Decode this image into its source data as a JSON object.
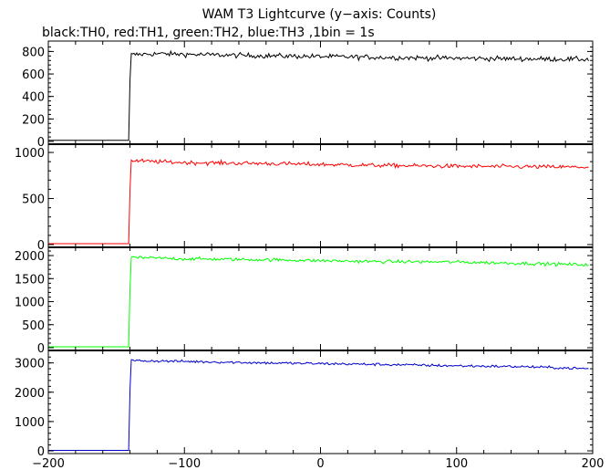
{
  "chart_data": {
    "type": "line",
    "title": "WAM T3 Lightcurve (y−axis: Counts)",
    "subtitle": "black:TH0, red:TH1, green:TH2, blue:TH3 ,1bin = 1s",
    "xlim": [
      -200,
      200
    ],
    "x_ticks": [
      -200,
      -100,
      0,
      100,
      200
    ],
    "x_tick_labels": [
      "−200",
      "−100",
      "0",
      "100",
      "200"
    ],
    "burst_time": -140,
    "panels": [
      {
        "series": "TH0",
        "color": "#000000",
        "ylim": [
          0,
          860
        ],
        "y_ticks": [
          0,
          200,
          400,
          600,
          800
        ],
        "y_tick_labels": [
          "0",
          "200",
          "400",
          "600",
          "800"
        ],
        "pre_level": 10,
        "first_level": 550,
        "level_points": [
          [
            -140,
            770
          ],
          [
            -120,
            780
          ],
          [
            -60,
            765
          ],
          [
            0,
            755
          ],
          [
            60,
            745
          ],
          [
            100,
            740
          ],
          [
            140,
            735
          ],
          [
            197,
            730
          ]
        ],
        "noise": 22
      },
      {
        "series": "TH1",
        "color": "#ff0000",
        "ylim": [
          0,
          1050
        ],
        "y_ticks": [
          0,
          500,
          1000
        ],
        "y_tick_labels": [
          "0",
          "500",
          "1000"
        ],
        "pre_level": 10,
        "first_level": 600,
        "level_points": [
          [
            -140,
            910
          ],
          [
            -100,
            890
          ],
          [
            -40,
            880
          ],
          [
            40,
            860
          ],
          [
            100,
            850
          ],
          [
            150,
            845
          ],
          [
            197,
            840
          ]
        ],
        "noise": 22
      },
      {
        "series": "TH2",
        "color": "#00ff00",
        "ylim": [
          0,
          2100
        ],
        "y_ticks": [
          0,
          500,
          1000,
          1500,
          2000
        ],
        "y_tick_labels": [
          "0",
          "500",
          "1000",
          "1500",
          "2000"
        ],
        "pre_level": 20,
        "first_level": 1300,
        "level_points": [
          [
            -140,
            1960
          ],
          [
            -100,
            1930
          ],
          [
            -40,
            1910
          ],
          [
            40,
            1870
          ],
          [
            100,
            1860
          ],
          [
            150,
            1830
          ],
          [
            197,
            1800
          ]
        ],
        "noise": 35
      },
      {
        "series": "TH3",
        "color": "#0000cc",
        "ylim": [
          0,
          3300
        ],
        "y_ticks": [
          0,
          1000,
          2000,
          3000
        ],
        "y_tick_labels": [
          "0",
          "1000",
          "2000",
          "3000"
        ],
        "pre_level": 15,
        "first_level": 2100,
        "level_points": [
          [
            -140,
            3080
          ],
          [
            -100,
            3050
          ],
          [
            -40,
            3000
          ],
          [
            40,
            2950
          ],
          [
            100,
            2900
          ],
          [
            150,
            2870
          ],
          [
            197,
            2800
          ]
        ],
        "noise": 45
      }
    ]
  }
}
